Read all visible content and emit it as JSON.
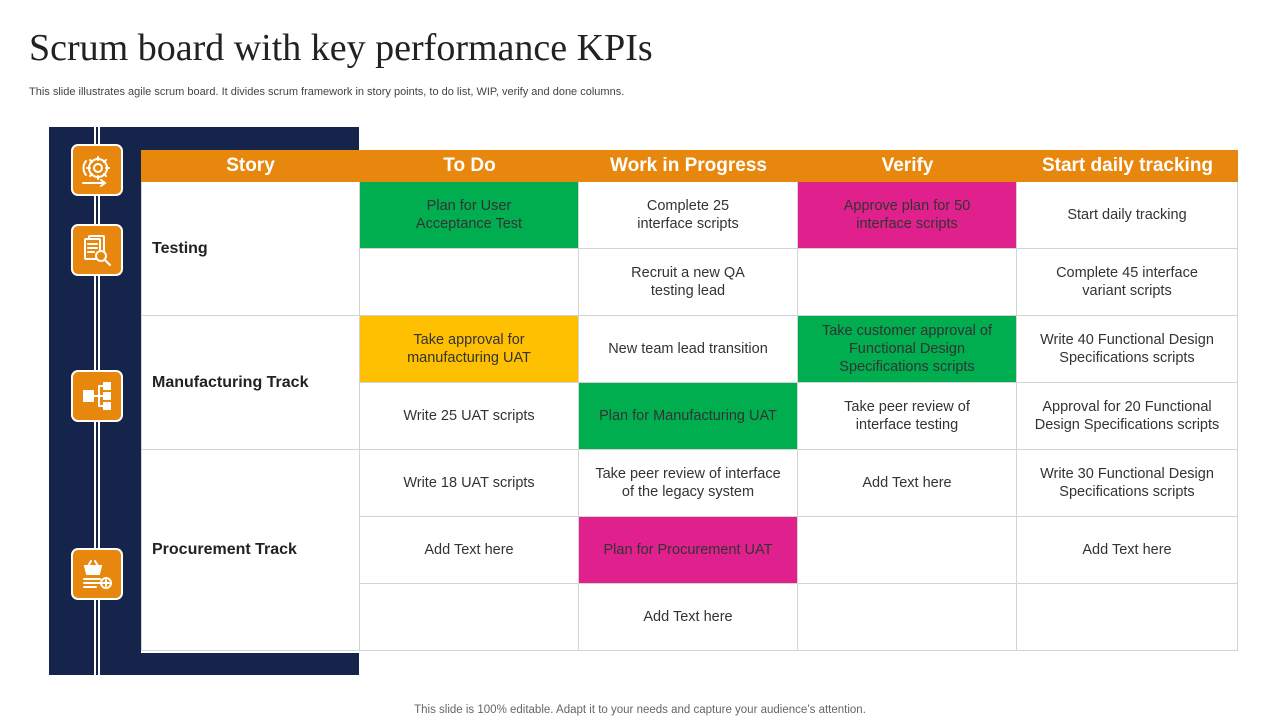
{
  "title": "Scrum board with key performance KPIs",
  "subtitle": "This slide illustrates agile scrum board. It divides scrum framework in story points, to do list, WIP, verify  and done columns.",
  "footer": "This slide is 100% editable. Adapt it to your needs and capture your audience’s attention.",
  "colors": {
    "accent": "#e8870d",
    "navy": "#14244a",
    "green": "#00ad4f",
    "magenta": "#e0218d",
    "yellow": "#fec000"
  },
  "icons": [
    "agile-cycle-icon",
    "document-search-icon",
    "network-nodes-icon",
    "shopping-basket-icon"
  ],
  "board": {
    "headers": [
      "Story",
      "To Do",
      "Work in Progress",
      "Verify",
      "Start daily tracking"
    ],
    "stories": [
      "Testing",
      "Manufacturing Track",
      "Procurement Track"
    ],
    "rows": [
      [
        "Plan for User\nAcceptance Test",
        "Complete 25\ninterface  scripts",
        "Approve plan for 50\ninterface scripts",
        "Start daily tracking"
      ],
      [
        "",
        "Recruit a new QA\ntesting lead",
        "",
        "Complete 45 interface\nvariant scripts"
      ],
      [
        "Take approval for\nmanufacturing UAT",
        "New team lead transition",
        "Take customer approval of\nFunctional Design\nSpecifications scripts",
        "Write 40 Functional Design\nSpecifications scripts"
      ],
      [
        "Write 25 UAT   scripts",
        "Plan for Manufacturing UAT",
        "Take peer review of\ninterface testing",
        "Approval for 20 Functional\nDesign Specifications scripts"
      ],
      [
        "Write 18 UAT   scripts",
        "Take peer review of interface\nof the legacy system",
        "Add Text here",
        "Write 30 Functional Design\nSpecifications scripts"
      ],
      [
        "Add Text here",
        "Plan for Procurement UAT",
        "",
        "Add Text here"
      ],
      [
        "",
        "Add Text here",
        "",
        ""
      ]
    ]
  }
}
